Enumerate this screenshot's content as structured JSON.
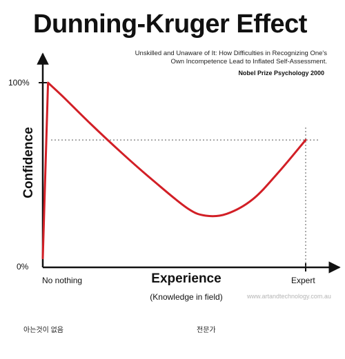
{
  "chart_data": {
    "type": "line",
    "title": "Dunning-Kruger Effect",
    "subtitle": "Unskilled and Unaware of It: How Difficulties in Recognizing One's Own Incompetence Lead to Inflated Self-Assessment.",
    "credit": "Nobel Prize Psychology  2000",
    "xlabel": "Experience",
    "xlabel_sub": "(Knowledge in field)",
    "ylabel": "Confidence",
    "y_ticks": [
      "100%",
      "0%"
    ],
    "x_ticks": [
      "No nothing",
      "Expert"
    ],
    "ylim": [
      0,
      100
    ],
    "xlim": [
      0,
      100
    ],
    "series": [
      {
        "x": [
          0,
          2,
          8,
          18,
          30,
          42,
          55,
          62,
          70,
          80,
          90,
          100
        ],
        "y": [
          5,
          100,
          92,
          78,
          62,
          47,
          32,
          28,
          29,
          37,
          52,
          69
        ]
      }
    ],
    "reference_line_y": 69,
    "reference_line_x": 100,
    "line_color": "#d21f26",
    "grid": false
  },
  "watermark": "www.artandtechnology.com.au",
  "korean_labels": {
    "left": "아는것이 없음",
    "right": "전문가"
  }
}
